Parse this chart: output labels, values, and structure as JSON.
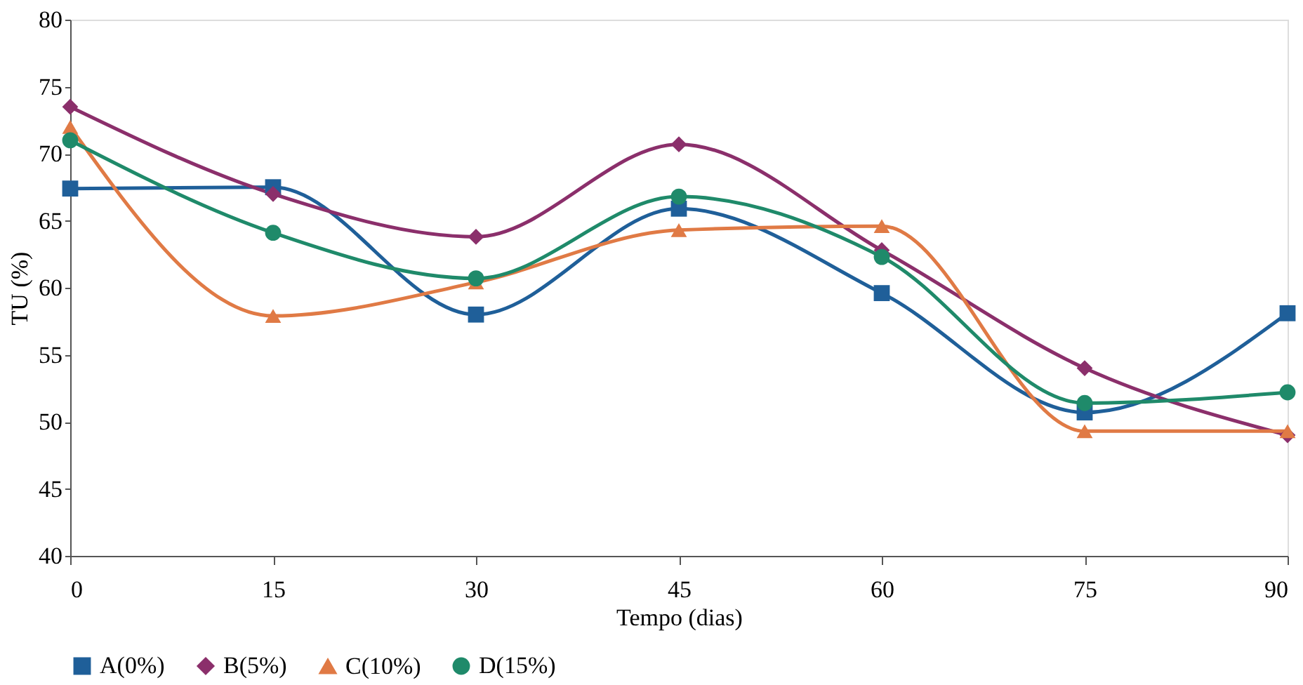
{
  "chart_data": {
    "type": "line",
    "xlabel": "Tempo (dias)",
    "ylabel": "TU (%)",
    "x": [
      0,
      15,
      30,
      45,
      60,
      75,
      90
    ],
    "xlim": [
      0,
      90
    ],
    "xticks": [
      0,
      15,
      30,
      45,
      60,
      75,
      90
    ],
    "ylim": [
      40,
      80
    ],
    "yticks": [
      40,
      45,
      50,
      55,
      60,
      65,
      70,
      75,
      80
    ],
    "grid": false,
    "legend": "bottom",
    "line_style": "solid",
    "series": [
      {
        "name": "A(0%)",
        "color": "#1f5f99",
        "marker": "square",
        "values": [
          67.4,
          67.5,
          58.0,
          65.9,
          59.6,
          50.7,
          58.1
        ]
      },
      {
        "name": "B(5%)",
        "color": "#8b2f6b",
        "marker": "diamond",
        "values": [
          73.5,
          67.0,
          63.8,
          70.7,
          62.8,
          54.0,
          49.0
        ]
      },
      {
        "name": "C(10%)",
        "color": "#e07a45",
        "marker": "triangle",
        "values": [
          72.0,
          57.9,
          60.4,
          64.3,
          64.6,
          49.3,
          49.3
        ]
      },
      {
        "name": "D(15%)",
        "color": "#1f8a6a",
        "marker": "circle",
        "values": [
          71.0,
          64.1,
          60.7,
          66.8,
          62.3,
          51.4,
          52.2
        ]
      }
    ]
  }
}
